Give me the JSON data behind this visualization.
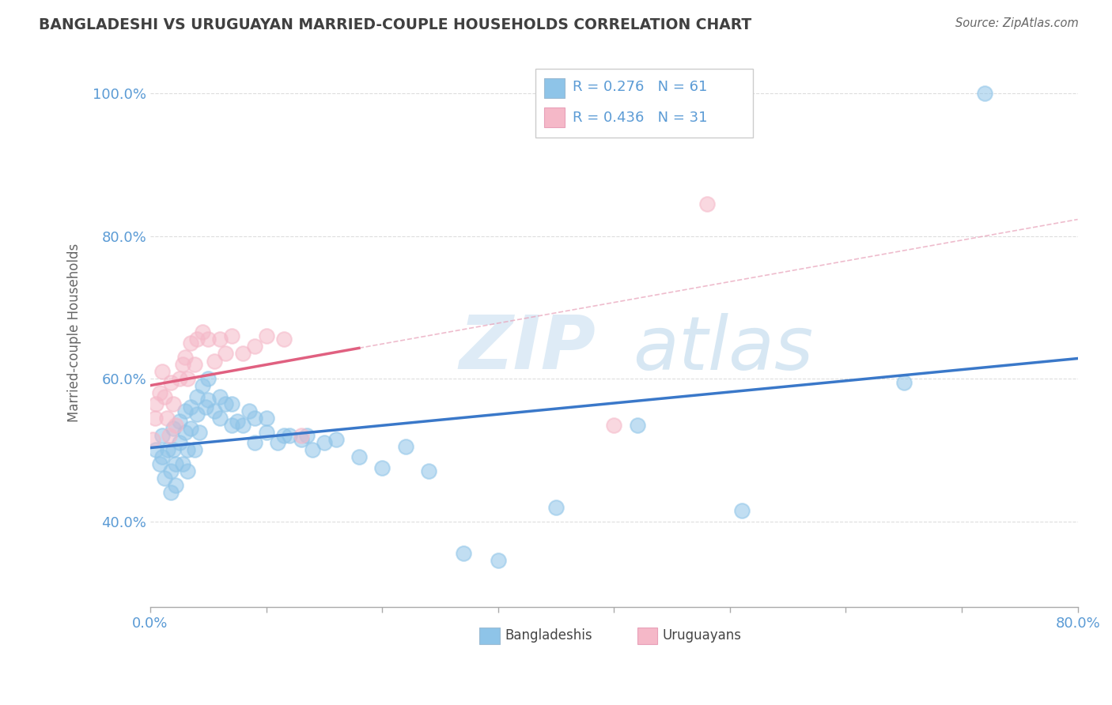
{
  "title": "BANGLADESHI VS URUGUAYAN MARRIED-COUPLE HOUSEHOLDS CORRELATION CHART",
  "source": "Source: ZipAtlas.com",
  "ylabel": "Married-couple Households",
  "x_min": 0.0,
  "x_max": 0.8,
  "y_min": 0.28,
  "y_max": 1.05,
  "x_ticks": [
    0.0,
    0.1,
    0.2,
    0.3,
    0.4,
    0.5,
    0.6,
    0.7,
    0.8
  ],
  "y_ticks": [
    0.4,
    0.6,
    0.8,
    1.0
  ],
  "y_tick_labels": [
    "40.0%",
    "60.0%",
    "80.0%",
    "100.0%"
  ],
  "background_color": "#ffffff",
  "grid_color": "#dddddd",
  "watermark_zip": "ZIP",
  "watermark_atlas": "atlas",
  "legend_r1": "0.276",
  "legend_n1": "61",
  "legend_r2": "0.436",
  "legend_n2": "31",
  "blue_color": "#8ec4e8",
  "pink_color": "#f5b8c8",
  "blue_line_color": "#3a78c9",
  "pink_line_color": "#e06080",
  "axis_label_color": "#5b9bd5",
  "title_color": "#404040",
  "bangladeshi_x": [
    0.005,
    0.008,
    0.01,
    0.01,
    0.012,
    0.015,
    0.018,
    0.018,
    0.02,
    0.02,
    0.022,
    0.022,
    0.025,
    0.025,
    0.028,
    0.03,
    0.03,
    0.032,
    0.032,
    0.035,
    0.035,
    0.038,
    0.04,
    0.04,
    0.042,
    0.045,
    0.048,
    0.05,
    0.05,
    0.055,
    0.06,
    0.06,
    0.065,
    0.07,
    0.07,
    0.075,
    0.08,
    0.085,
    0.09,
    0.09,
    0.1,
    0.1,
    0.11,
    0.115,
    0.12,
    0.13,
    0.135,
    0.14,
    0.15,
    0.16,
    0.18,
    0.2,
    0.22,
    0.24,
    0.27,
    0.3,
    0.35,
    0.42,
    0.51,
    0.65,
    0.72
  ],
  "bangladeshi_y": [
    0.5,
    0.48,
    0.52,
    0.49,
    0.46,
    0.5,
    0.47,
    0.44,
    0.53,
    0.5,
    0.48,
    0.45,
    0.54,
    0.51,
    0.48,
    0.555,
    0.525,
    0.5,
    0.47,
    0.56,
    0.53,
    0.5,
    0.575,
    0.55,
    0.525,
    0.59,
    0.56,
    0.6,
    0.57,
    0.555,
    0.575,
    0.545,
    0.565,
    0.565,
    0.535,
    0.54,
    0.535,
    0.555,
    0.545,
    0.51,
    0.545,
    0.525,
    0.51,
    0.52,
    0.52,
    0.515,
    0.52,
    0.5,
    0.51,
    0.515,
    0.49,
    0.475,
    0.505,
    0.47,
    0.355,
    0.345,
    0.42,
    0.535,
    0.415,
    0.595,
    1.0
  ],
  "uruguayan_x": [
    0.002,
    0.004,
    0.005,
    0.008,
    0.01,
    0.012,
    0.014,
    0.016,
    0.018,
    0.02,
    0.022,
    0.025,
    0.028,
    0.03,
    0.032,
    0.035,
    0.038,
    0.04,
    0.045,
    0.05,
    0.055,
    0.06,
    0.065,
    0.07,
    0.08,
    0.09,
    0.1,
    0.115,
    0.13,
    0.4,
    0.48
  ],
  "uruguayan_y": [
    0.515,
    0.545,
    0.565,
    0.58,
    0.61,
    0.575,
    0.545,
    0.52,
    0.595,
    0.565,
    0.535,
    0.6,
    0.62,
    0.63,
    0.6,
    0.65,
    0.62,
    0.655,
    0.665,
    0.655,
    0.625,
    0.655,
    0.635,
    0.66,
    0.635,
    0.645,
    0.66,
    0.655,
    0.52,
    0.535,
    0.845
  ]
}
